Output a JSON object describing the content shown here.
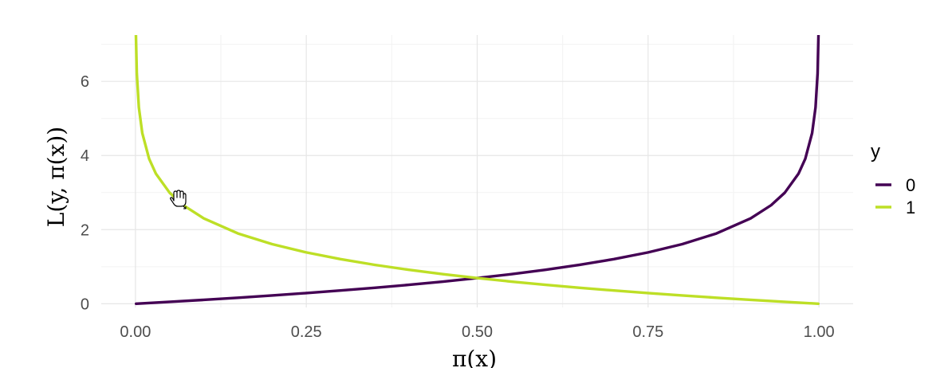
{
  "chart_data": {
    "type": "line",
    "xlabel": "π(x)",
    "ylabel": "L(y, π(x))",
    "xlim": [
      -0.05,
      1.05
    ],
    "ylim": [
      -0.1,
      7.25
    ],
    "x_ticks": [
      0.0,
      0.25,
      0.5,
      0.75,
      1.0
    ],
    "x_tick_labels": [
      "0.00",
      "0.25",
      "0.50",
      "0.75",
      "1.00"
    ],
    "y_ticks": [
      0,
      2,
      4,
      6
    ],
    "y_tick_labels": [
      "0",
      "2",
      "4",
      "6"
    ],
    "grid": true,
    "legend": {
      "title": "y",
      "position": "right"
    },
    "series": [
      {
        "name": "0",
        "color": "#440154",
        "x": [
          0.001,
          0.05,
          0.1,
          0.15,
          0.2,
          0.25,
          0.3,
          0.35,
          0.4,
          0.45,
          0.5,
          0.55,
          0.6,
          0.65,
          0.7,
          0.75,
          0.8,
          0.85,
          0.9,
          0.93,
          0.95,
          0.97,
          0.98,
          0.99,
          0.995,
          0.998,
          0.9993
        ],
        "y": [
          0.001,
          0.051,
          0.105,
          0.163,
          0.223,
          0.288,
          0.357,
          0.431,
          0.511,
          0.598,
          0.693,
          0.799,
          0.916,
          1.05,
          1.204,
          1.386,
          1.609,
          1.897,
          2.303,
          2.659,
          2.996,
          3.507,
          3.912,
          4.605,
          5.298,
          6.215,
          7.264
        ]
      },
      {
        "name": "1",
        "color": "#bddf26",
        "x": [
          0.0007,
          0.002,
          0.005,
          0.01,
          0.02,
          0.03,
          0.05,
          0.07,
          0.1,
          0.15,
          0.2,
          0.25,
          0.3,
          0.35,
          0.4,
          0.45,
          0.5,
          0.55,
          0.6,
          0.65,
          0.7,
          0.75,
          0.8,
          0.85,
          0.9,
          0.95,
          0.999
        ],
        "y": [
          7.264,
          6.215,
          5.298,
          4.605,
          3.912,
          3.507,
          2.996,
          2.659,
          2.303,
          1.897,
          1.609,
          1.386,
          1.204,
          1.05,
          0.916,
          0.799,
          0.693,
          0.598,
          0.511,
          0.431,
          0.357,
          0.288,
          0.223,
          0.163,
          0.105,
          0.051,
          0.001
        ]
      }
    ]
  }
}
